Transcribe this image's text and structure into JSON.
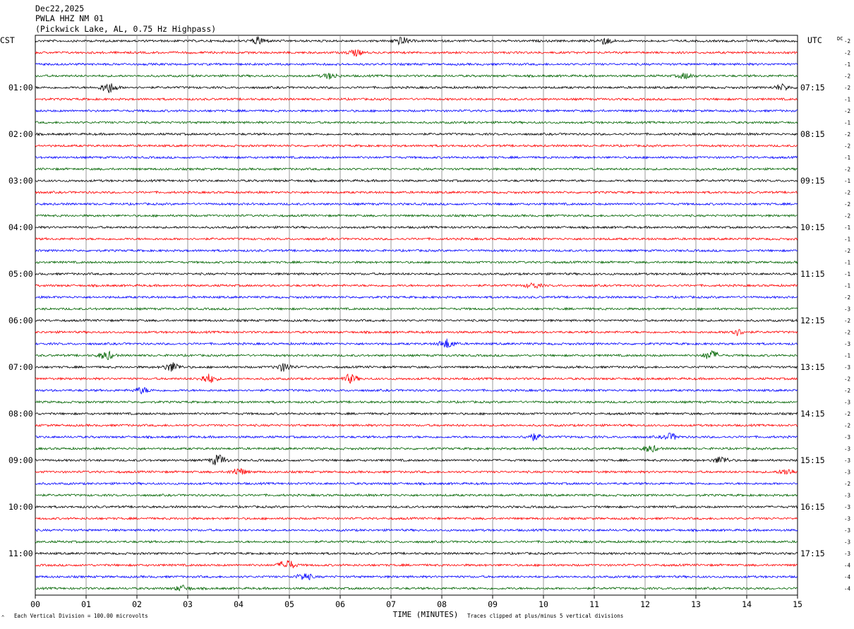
{
  "header": {
    "date": "Dec22,2025",
    "station": "PWLA HHZ NM 01",
    "location": "(Pickwick Lake, AL, 0.75 Hz Highpass)"
  },
  "axes": {
    "left_tz": "CST",
    "right_tz": "UTC",
    "dc_label": "DC",
    "xlabel": "TIME (MINUTES)",
    "x_ticks": [
      "00",
      "01",
      "02",
      "03",
      "04",
      "05",
      "06",
      "07",
      "08",
      "09",
      "10",
      "11",
      "12",
      "13",
      "14",
      "15"
    ]
  },
  "footer": {
    "corner_mark": "^",
    "scale_note": "Each Vertical Division =  100.00 microvolts",
    "clip_note": "Traces clipped at plus/minus 5 vertical divisions"
  },
  "colors": {
    "trace_cycle": [
      "#000000",
      "#ff0000",
      "#0000ff",
      "#006400"
    ],
    "grid": "#808080",
    "background": "#ffffff"
  },
  "chart_data": {
    "type": "line",
    "description_kind": "helicorder",
    "x_range_minutes": [
      0,
      15
    ],
    "trace_count": 48,
    "minutes_per_trace": 15,
    "left_hour_labels": [
      {
        "trace": 4,
        "label": "01:00"
      },
      {
        "trace": 8,
        "label": "02:00"
      },
      {
        "trace": 12,
        "label": "03:00"
      },
      {
        "trace": 16,
        "label": "04:00"
      },
      {
        "trace": 20,
        "label": "05:00"
      },
      {
        "trace": 24,
        "label": "06:00"
      },
      {
        "trace": 28,
        "label": "07:00"
      },
      {
        "trace": 32,
        "label": "08:00"
      },
      {
        "trace": 36,
        "label": "09:00"
      },
      {
        "trace": 40,
        "label": "10:00"
      },
      {
        "trace": 44,
        "label": "11:00"
      }
    ],
    "right_hour_labels": [
      {
        "trace": 4,
        "label": "07:15"
      },
      {
        "trace": 8,
        "label": "08:15"
      },
      {
        "trace": 12,
        "label": "09:15"
      },
      {
        "trace": 16,
        "label": "10:15"
      },
      {
        "trace": 20,
        "label": "11:15"
      },
      {
        "trace": 24,
        "label": "12:15"
      },
      {
        "trace": 28,
        "label": "13:15"
      },
      {
        "trace": 32,
        "label": "14:15"
      },
      {
        "trace": 36,
        "label": "15:15"
      },
      {
        "trace": 40,
        "label": "16:15"
      },
      {
        "trace": 44,
        "label": "17:15"
      }
    ],
    "dc_offsets": [
      -2,
      -2,
      -1,
      -2,
      -2,
      -1,
      -2,
      -1,
      -2,
      -2,
      -1,
      -2,
      -1,
      -2,
      -2,
      -2,
      -1,
      -1,
      -2,
      -1,
      -1,
      -1,
      -2,
      -3,
      -2,
      -2,
      -3,
      -1,
      -3,
      -2,
      -2,
      -3,
      -2,
      -2,
      -3,
      -3,
      -3,
      -3,
      -2,
      -3,
      -3,
      -3,
      -3,
      -3,
      -3,
      -4,
      -4,
      -4
    ],
    "events": [
      {
        "trace": 0,
        "minute": 4.4,
        "amp": 2.0
      },
      {
        "trace": 0,
        "minute": 7.2,
        "amp": 2.0
      },
      {
        "trace": 0,
        "minute": 11.2,
        "amp": 1.8
      },
      {
        "trace": 1,
        "minute": 6.3,
        "amp": 1.6
      },
      {
        "trace": 3,
        "minute": 5.8,
        "amp": 1.5
      },
      {
        "trace": 3,
        "minute": 12.8,
        "amp": 1.5
      },
      {
        "trace": 4,
        "minute": 1.45,
        "amp": 3.0
      },
      {
        "trace": 4,
        "minute": 14.7,
        "amp": 1.6
      },
      {
        "trace": 21,
        "minute": 9.8,
        "amp": 1.4
      },
      {
        "trace": 25,
        "minute": 13.8,
        "amp": 1.8
      },
      {
        "trace": 26,
        "minute": 8.1,
        "amp": 2.6
      },
      {
        "trace": 27,
        "minute": 1.4,
        "amp": 2.2
      },
      {
        "trace": 27,
        "minute": 13.3,
        "amp": 2.5
      },
      {
        "trace": 28,
        "minute": 2.7,
        "amp": 2.6
      },
      {
        "trace": 28,
        "minute": 4.9,
        "amp": 2.2
      },
      {
        "trace": 29,
        "minute": 3.4,
        "amp": 2.6
      },
      {
        "trace": 29,
        "minute": 6.2,
        "amp": 2.3
      },
      {
        "trace": 30,
        "minute": 2.1,
        "amp": 1.6
      },
      {
        "trace": 34,
        "minute": 9.8,
        "amp": 1.8
      },
      {
        "trace": 34,
        "minute": 12.5,
        "amp": 1.8
      },
      {
        "trace": 35,
        "minute": 12.1,
        "amp": 1.8
      },
      {
        "trace": 36,
        "minute": 3.6,
        "amp": 3.0
      },
      {
        "trace": 36,
        "minute": 13.5,
        "amp": 2.0
      },
      {
        "trace": 37,
        "minute": 4.0,
        "amp": 2.0
      },
      {
        "trace": 37,
        "minute": 14.8,
        "amp": 1.8
      },
      {
        "trace": 45,
        "minute": 4.95,
        "amp": 3.0
      },
      {
        "trace": 46,
        "minute": 5.3,
        "amp": 2.0
      },
      {
        "trace": 47,
        "minute": 2.9,
        "amp": 1.5
      }
    ]
  }
}
